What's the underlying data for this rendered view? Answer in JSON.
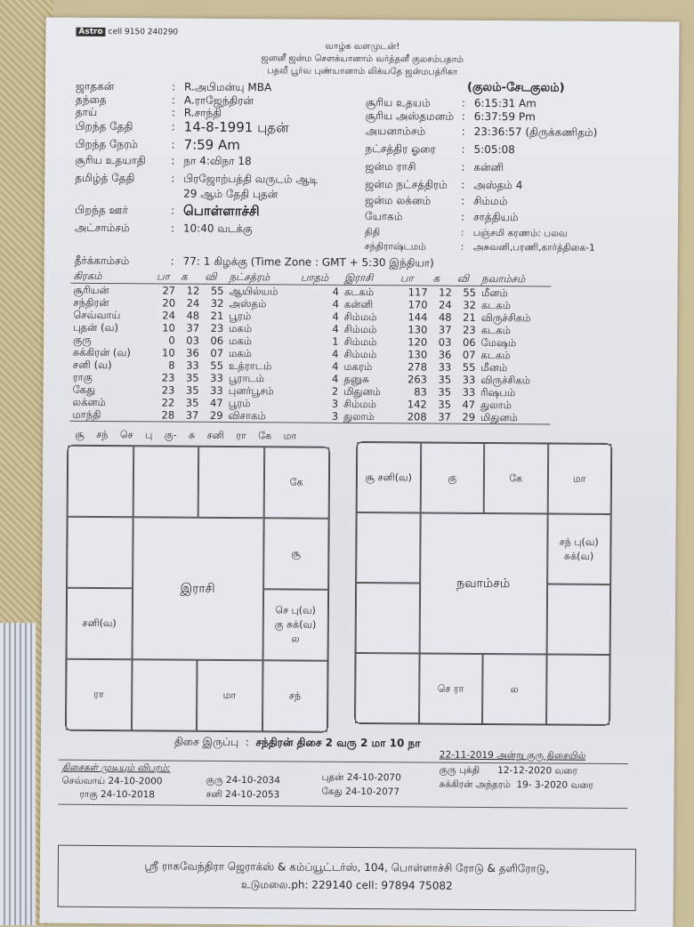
{
  "brand": {
    "logo": "Astro",
    "phone": "cell 9150 240290"
  },
  "header": [
    "வாழ்க வளமுடன்!",
    "ஜனனீ ஜன்ம சௌக்யானாம் வர்த்தனீ குலசம்பதாம்",
    "பதவீ பூர்வ புண்யானாம் லிக்யதே ஜன்மபத்ரிகா"
  ],
  "left": [
    {
      "k": "ஜாதகன்",
      "v": "R.அபிமன்யு MBA"
    },
    {
      "k": "தந்தை",
      "v": "A.ராஜேந்திரன்"
    },
    {
      "k": "தாய்",
      "v": "R.சாந்தி"
    },
    {
      "k": "பிறந்த தேதி",
      "v": "14-8-1991  புதன்"
    },
    {
      "k": "பிறந்த நேரம்",
      "v": "7:59 Am"
    },
    {
      "k": "சூரிய உதயாதி",
      "v": "நா 4:விநா 18"
    },
    {
      "k": "தமிழ்த் தேதி",
      "v": "பிரஜோற்பத்தி வருடம் ஆடி"
    },
    {
      "k": "",
      "v": "29 ஆம் தேதி புதன்"
    },
    {
      "k": "பிறந்த ஊர்",
      "v": "பொள்ளாச்சி"
    },
    {
      "k": "அட்சாம்சம்",
      "v": "10:40 வடக்கு"
    },
    {
      "k": "தீர்க்காம்சம்",
      "v": "77: 1 கிழக்கு (Time Zone : GMT + 5:30  இந்தியா)"
    }
  ],
  "kulam": "(குலம்-சேடகுலம்)",
  "right": [
    {
      "k": "சூரிய உதயம்",
      "v": "6:15:31 Am"
    },
    {
      "k": "சூரிய அஸ்தமனம்",
      "v": "6:37:59 Pm"
    },
    {
      "k": "அயனாம்சம்",
      "v": "23:36:57 (திருக்கணிதம்)"
    },
    {
      "k": "நட்சத்திர ஓரை",
      "v": "5:05:08"
    },
    {
      "k": "ஜன்ம ராசி",
      "v": "கன்னி"
    },
    {
      "k": "ஜன்ம நட்சத்திரம்",
      "v": "அஸ்தம் 4"
    },
    {
      "k": "ஜன்ம லக்னம்",
      "v": "சிம்மம்"
    },
    {
      "k": "யோகம்",
      "v": "சாத்தியம்"
    },
    {
      "k": "திதி",
      "v": "பஞ்சமி      கரணம்: பலவ"
    },
    {
      "k": "சந்திராஷ்டமம்",
      "v": "அசுவனி,பரணி,கார்த்திகை-1"
    }
  ],
  "planets": {
    "headers": [
      "கிரகம்",
      "பா",
      "க",
      "வி",
      "நட்சத்ரம்",
      "பாதம்",
      "இராசி",
      "பா",
      "க",
      "வி",
      "நவாம்சம்"
    ],
    "rows": [
      [
        "சூரியன்",
        "27",
        "12",
        "55",
        "ஆயில்யம்",
        "4",
        "கடகம்",
        "117",
        "12",
        "55",
        "மீனம்"
      ],
      [
        "சந்திரன்",
        "20",
        "24",
        "32",
        "அஸ்தம்",
        "4",
        "கன்னி",
        "170",
        "24",
        "32",
        "கடகம்"
      ],
      [
        "செவ்வாய்",
        "24",
        "48",
        "21",
        "பூரம்",
        "4",
        "சிம்மம்",
        "144",
        "48",
        "21",
        "விருச்சிகம்"
      ],
      [
        "புதன் (வ)",
        "10",
        "37",
        "23",
        "மகம்",
        "4",
        "சிம்மம்",
        "130",
        "37",
        "23",
        "கடகம்"
      ],
      [
        "குரு",
        "0",
        "03",
        "06",
        "மகம்",
        "1",
        "சிம்மம்",
        "120",
        "03",
        "06",
        "மேஷம்"
      ],
      [
        "சுக்கிரன் (வ)",
        "10",
        "36",
        "07",
        "மகம்",
        "4",
        "சிம்மம்",
        "130",
        "36",
        "07",
        "கடகம்"
      ],
      [
        "சனி (வ)",
        "8",
        "33",
        "55",
        "உத்ராடம்",
        "4",
        "மகரம்",
        "278",
        "33",
        "55",
        "மீனம்"
      ],
      [
        "ராகு",
        "23",
        "35",
        "33",
        "பூராடம்",
        "4",
        "தனுசு",
        "263",
        "35",
        "33",
        "விருச்சிகம்"
      ],
      [
        "கேது",
        "23",
        "35",
        "33",
        "புனர்பூசம்",
        "2",
        "மிதுனம்",
        "83",
        "35",
        "33",
        "ரிஷபம்"
      ],
      [
        "லக்னம்",
        "22",
        "35",
        "47",
        "பூரம்",
        "3",
        "சிம்மம்",
        "142",
        "35",
        "47",
        "துலாம்"
      ],
      [
        "மாந்தி",
        "28",
        "37",
        "29",
        "விசாகம்",
        "3",
        "துலாம்",
        "208",
        "37",
        "29",
        "மிதுனம்"
      ]
    ]
  },
  "sequence": "சூ சந் செ பு கு- சு சனி ரா கே மா",
  "rasi": {
    "title": "இராசி",
    "cells": [
      "",
      "",
      "",
      "கே",
      "",
      "சூ",
      "சனி(வ)",
      "செ பு(வ)|கு சுக்(வ)|ல",
      "ரா",
      "",
      "மா",
      "சந்"
    ]
  },
  "navamsa": {
    "title": "நவாம்சம்",
    "cells": [
      "சூ சனி(வ)",
      "கு",
      "கே",
      "மா",
      "",
      "சந் பு(வ)|சுக்(வ)",
      "",
      "",
      "",
      "செ ரா",
      "ல",
      ""
    ]
  },
  "dasa_balance": {
    "label": "திசை இருப்பு",
    "value": "சந்திரன் திசை 2 வரு 2 மா 10 நா"
  },
  "dasa_end": {
    "title": "திசைகள் முடியும் விபரம்:",
    "items": [
      "செவ்வாய் 24-10-2000",
      "ராகு 24-10-2018",
      "குரு 24-10-2034",
      "சனி 24-10-2053",
      "புதன் 24-10-2070",
      "கேது 24-10-2077"
    ]
  },
  "current": {
    "title": "22-11-2019 அன்று குரு திசையில்",
    "lines": [
      "குரு புக்தி      12-12-2020 வரை",
      "சுக்கிரன் அந்தரம்  19- 3-2020 வரை"
    ]
  },
  "footer": {
    "line1": "ஸ்ரீ ராகவேந்திரா ஜெராக்ஸ் & கம்ப்யூட்டர்ஸ், 104, பொள்ளாச்சி ரோடு & தளிரோடு,",
    "line2": "உடுமலை.ph: 229140   cell: 97894 75082"
  }
}
